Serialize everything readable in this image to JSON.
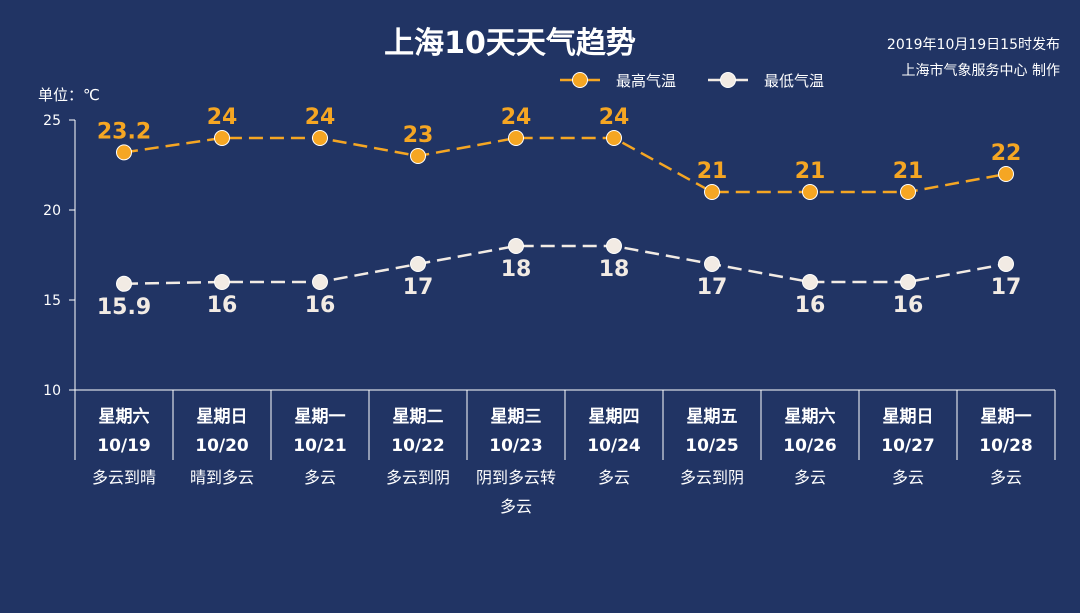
{
  "header": {
    "title": "上海10天天气趋势",
    "issued": "2019年10月19日15时发布",
    "maker": "上海市气象服务中心 制作",
    "unit": "单位：℃"
  },
  "colors": {
    "background": "#213464",
    "high": "#f5a623",
    "low": "#f2ebe4",
    "axis": "#ffffff"
  },
  "chart_data": {
    "type": "line",
    "yticks": [
      25,
      20,
      15,
      10
    ],
    "ylim": [
      10,
      25
    ],
    "days": [
      "星期六",
      "星期日",
      "星期一",
      "星期二",
      "星期三",
      "星期四",
      "星期五",
      "星期六",
      "星期日",
      "星期一"
    ],
    "dates": [
      "10/19",
      "10/20",
      "10/21",
      "10/22",
      "10/23",
      "10/24",
      "10/25",
      "10/26",
      "10/27",
      "10/28"
    ],
    "weather": [
      "多云到晴",
      "晴到多云",
      "多云",
      "多云到阴",
      "阴到多云转\n多云",
      "多云",
      "多云到阴",
      "多云",
      "多云",
      "多云"
    ],
    "series": [
      {
        "name": "最高气温",
        "values": [
          23.2,
          24,
          24,
          23,
          24,
          24,
          21,
          21,
          21,
          22
        ],
        "labels": [
          "23.2",
          "24",
          "24",
          "23",
          "24",
          "24",
          "21",
          "21",
          "21",
          "22"
        ]
      },
      {
        "name": "最低气温",
        "values": [
          15.9,
          16,
          16,
          17,
          18,
          18,
          17,
          16,
          16,
          17
        ],
        "labels": [
          "15.9",
          "16",
          "16",
          "17",
          "18",
          "18",
          "17",
          "16",
          "16",
          "17"
        ]
      }
    ],
    "legend_position": "top-center"
  }
}
